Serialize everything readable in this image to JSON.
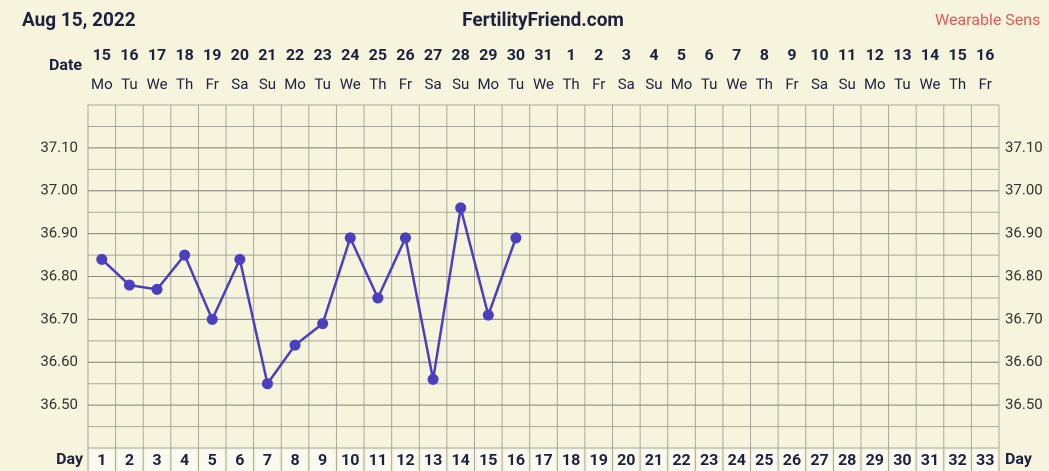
{
  "chart_data": {
    "type": "line",
    "date": "Aug 15, 2022",
    "title": "FertilityFriend.com",
    "note": "Wearable Sens",
    "date_label": "Date",
    "day_label": "Day",
    "categories": [
      "1",
      "2",
      "3",
      "4",
      "5",
      "6",
      "7",
      "8",
      "9",
      "10",
      "11",
      "12",
      "13",
      "14",
      "15",
      "16",
      "17",
      "18",
      "19",
      "20",
      "21",
      "22",
      "23",
      "24",
      "25",
      "26",
      "27",
      "28",
      "29",
      "30",
      "31",
      "32",
      "33"
    ],
    "dates": [
      "15",
      "16",
      "17",
      "18",
      "19",
      "20",
      "21",
      "22",
      "23",
      "24",
      "25",
      "26",
      "27",
      "28",
      "29",
      "30",
      "31",
      "1",
      "2",
      "3",
      "4",
      "5",
      "6",
      "7",
      "8",
      "9",
      "10",
      "11",
      "12",
      "13",
      "14",
      "15",
      "16"
    ],
    "weekdays": [
      "Mo",
      "Tu",
      "We",
      "Th",
      "Fr",
      "Sa",
      "Su",
      "Mo",
      "Tu",
      "We",
      "Th",
      "Fr",
      "Sa",
      "Su",
      "Mo",
      "Tu",
      "We",
      "Th",
      "Fr",
      "Sa",
      "Su",
      "Mo",
      "Tu",
      "We",
      "Th",
      "Fr",
      "Sa",
      "Su",
      "Mo",
      "Tu",
      "We",
      "Th",
      "Fr"
    ],
    "series": [
      {
        "color": "#4a3fbf",
        "values": [
          36.84,
          36.78,
          36.77,
          36.85,
          36.7,
          36.84,
          36.55,
          36.64,
          36.69,
          36.89,
          36.75,
          36.89,
          36.56,
          36.96,
          36.71,
          36.89,
          null,
          null,
          null,
          null,
          null,
          null,
          null,
          null,
          null,
          null,
          null,
          null,
          null,
          null,
          null,
          null,
          null
        ]
      }
    ],
    "ylim": [
      36.4,
      37.2
    ],
    "yticks": [
      {
        "value": 36.5,
        "label": "36.50"
      },
      {
        "value": 36.6,
        "label": "36.60"
      },
      {
        "value": 36.7,
        "label": "36.70"
      },
      {
        "value": 36.8,
        "label": "36.80"
      },
      {
        "value": 36.9,
        "label": "36.90"
      },
      {
        "value": 37.0,
        "label": "37.00"
      },
      {
        "value": 37.1,
        "label": "37.10"
      }
    ],
    "grid": true
  }
}
